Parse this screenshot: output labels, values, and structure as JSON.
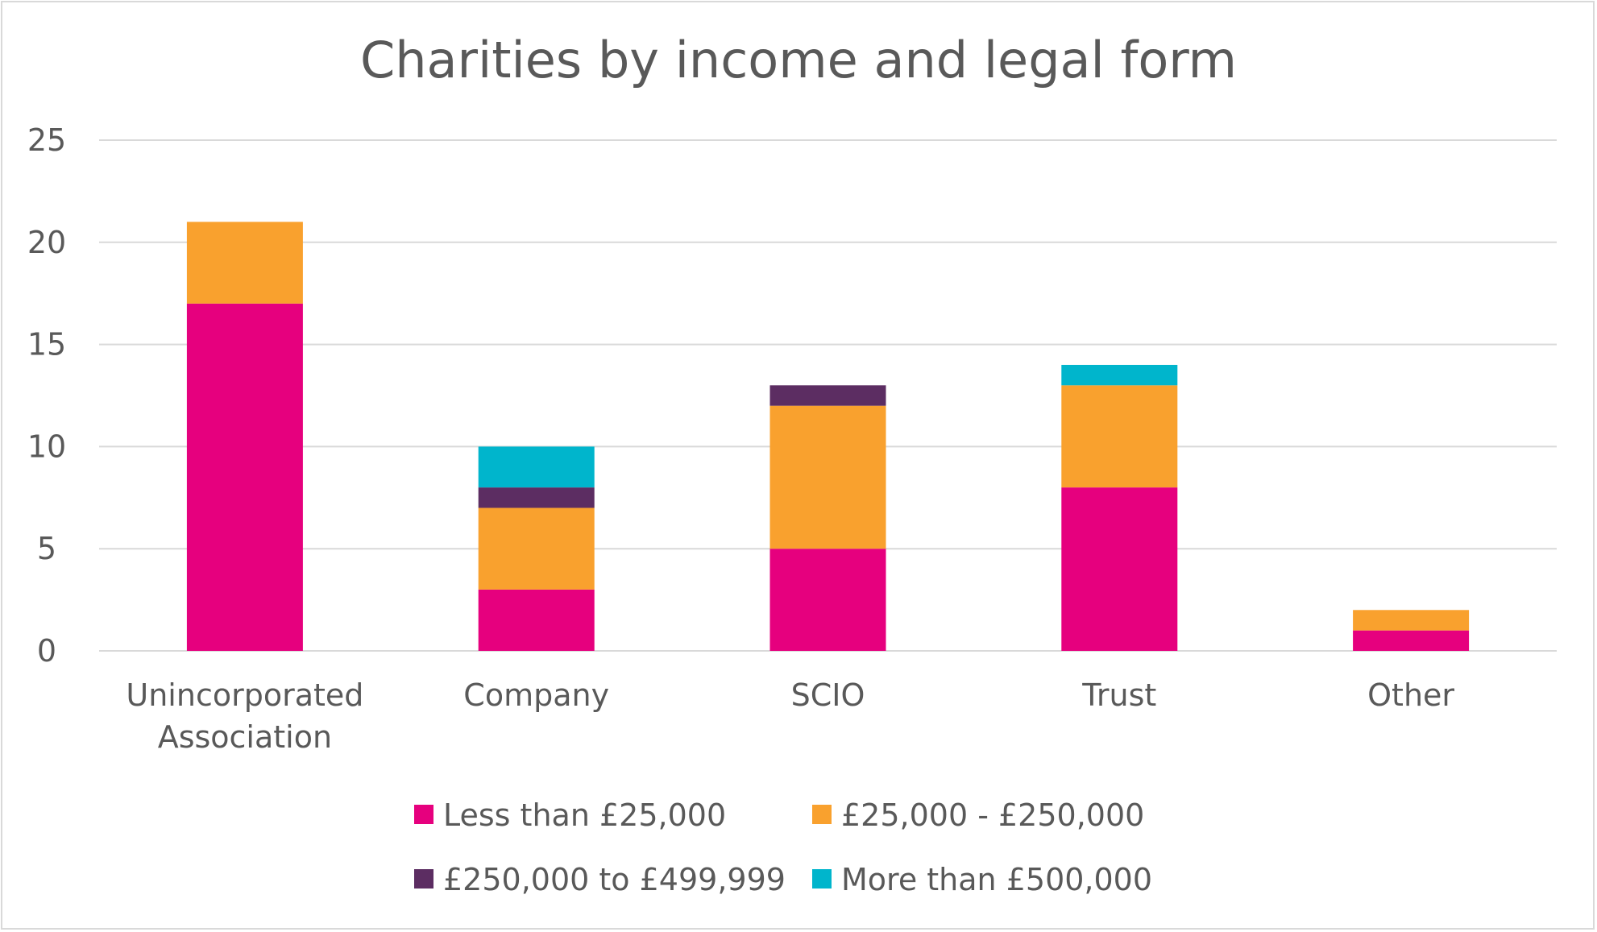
{
  "chart_data": {
    "type": "bar",
    "stacked": true,
    "title": "Charities by income and legal form",
    "categories": [
      [
        "Unincorporated",
        "Association"
      ],
      [
        "Company"
      ],
      [
        "SCIO"
      ],
      [
        "Trust"
      ],
      [
        "Other"
      ]
    ],
    "series": [
      {
        "name": "Less than £25,000",
        "color": "#e6007e",
        "values": [
          17,
          3,
          5,
          8,
          1
        ]
      },
      {
        "name": "£25,000 - £250,000",
        "color": "#f9a12e",
        "values": [
          4,
          4,
          7,
          5,
          1
        ]
      },
      {
        "name": "£250,000 to £499,999",
        "color": "#5c2d62",
        "values": [
          0,
          1,
          1,
          0,
          0
        ]
      },
      {
        "name": "More than £500,000",
        "color": "#00b5cc",
        "values": [
          0,
          2,
          0,
          1,
          0
        ]
      }
    ],
    "yticks": [
      0,
      5,
      10,
      15,
      20,
      25
    ],
    "ylim": [
      0,
      25
    ],
    "grid": true,
    "legend_position": "bottom"
  }
}
